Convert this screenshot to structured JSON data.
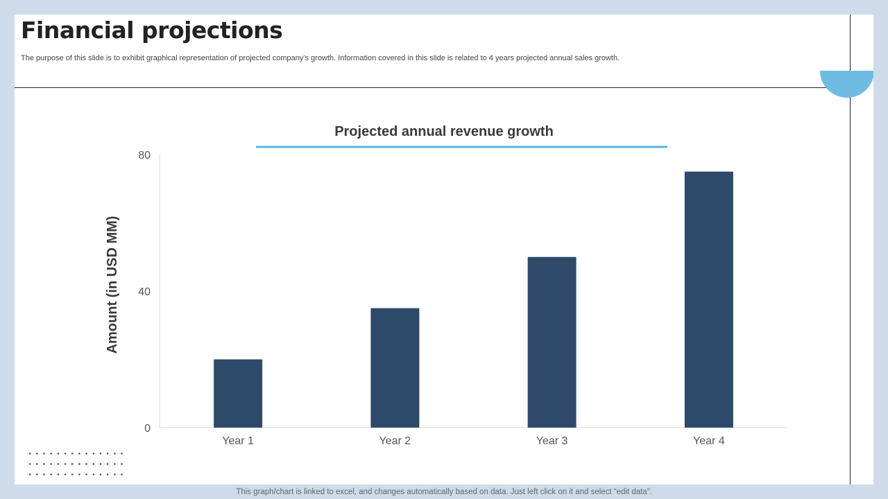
{
  "slide": {
    "title": "Financial projections",
    "subtitle": "The purpose of this slide is to exhibit graphical representation of projected company’s growth. Information covered in this slide is related to 4 years projected annual sales growth.",
    "footer_note": "This graph/chart is linked to excel, and changes automatically based on data. Just left click on it and select “edit data”."
  },
  "colors": {
    "bar": "#2e4a6a",
    "accent": "#5ab4d9",
    "half_circle": "#6fbce3"
  },
  "chart_data": {
    "type": "bar",
    "title": "Projected annual revenue growth",
    "xlabel": "",
    "ylabel": "Amount (in USD MM)",
    "categories": [
      "Year 1",
      "Year 2",
      "Year 3",
      "Year 4"
    ],
    "values": [
      20,
      35,
      50,
      75
    ],
    "ylim": [
      0,
      80
    ],
    "yticks": [
      0,
      40,
      80
    ],
    "grid": false,
    "legend": "none"
  }
}
